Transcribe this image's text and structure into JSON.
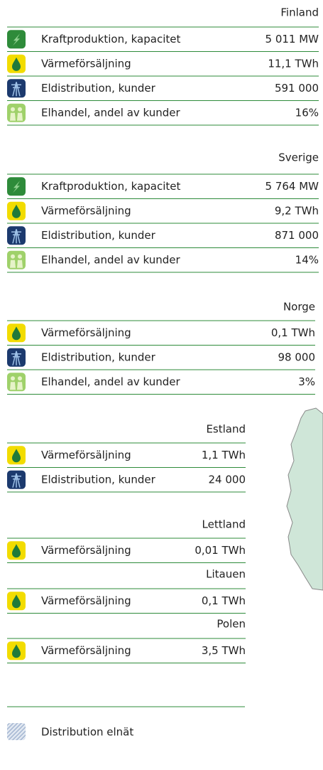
{
  "sections": [
    {
      "title": "Finland",
      "rows": [
        {
          "label": "Kraftproduktion, kapacitet",
          "value": "5 011 MW"
        },
        {
          "label": "Värmeförsäljning",
          "value": "11,1 TWh"
        },
        {
          "label": "Eldistribution, kunder",
          "value": "591 000"
        },
        {
          "label": "Elhandel, andel av kunder",
          "value": "16%"
        }
      ]
    },
    {
      "title": "Sverige",
      "rows": [
        {
          "label": "Kraftproduktion, kapacitet",
          "value": "5 764 MW"
        },
        {
          "label": "Värmeförsäljning",
          "value": "9,2 TWh"
        },
        {
          "label": "Eldistribution, kunder",
          "value": "871 000"
        },
        {
          "label": "Elhandel, andel av kunder",
          "value": "14%"
        }
      ]
    },
    {
      "title": "Norge",
      "rows": [
        {
          "label": "Värmeförsäljning",
          "value": "0,1 TWh"
        },
        {
          "label": "Eldistribution, kunder",
          "value": "98 000"
        },
        {
          "label": "Elhandel, andel av kunder",
          "value": "3%"
        }
      ]
    },
    {
      "title": "Estland",
      "rows": [
        {
          "label": "Värmeförsäljning",
          "value": "1,1 TWh"
        },
        {
          "label": "Eldistribution, kunder",
          "value": "24 000"
        }
      ]
    },
    {
      "title": "Lettland",
      "rows": [
        {
          "label": "Värmeförsäljning",
          "value": "0,01 TWh"
        }
      ]
    },
    {
      "title": "Litauen",
      "rows": [
        {
          "label": "Värmeförsäljning",
          "value": "0,1 TWh"
        }
      ]
    },
    {
      "title": "Polen",
      "rows": [
        {
          "label": "Värmeförsäljning",
          "value": "3,5 TWh"
        }
      ]
    }
  ],
  "legend": "Distribution elnät"
}
